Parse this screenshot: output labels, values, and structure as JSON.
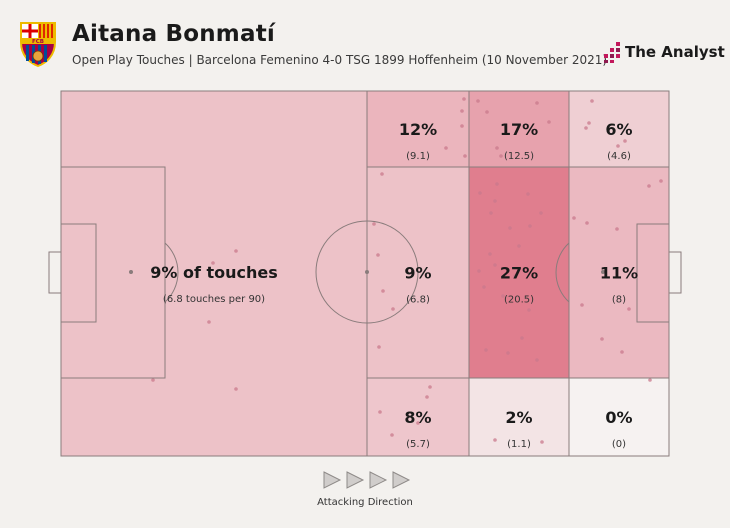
{
  "header": {
    "title": "Aitana Bonmatí",
    "subtitle": "Open Play Touches | Barcelona Femenino 4-0 TSG 1899 Hoffenheim (10 November 2021)",
    "brand": "The Analyst",
    "crest_text": "FCB"
  },
  "footer": {
    "direction_label": "Attacking Direction"
  },
  "colors": {
    "background": "#f3f1ee",
    "line": "#8a7c7c",
    "dot": "#c97a8c",
    "brand_accent": "#c2185b",
    "heat_low": "#f6f2f1",
    "heat_high": "#e07e8e"
  },
  "chart_data": {
    "type": "heatmap",
    "title": "Aitana Bonmatí",
    "subtitle": "Open Play Touches | Barcelona Femenino 4-0 TSG 1899 Hoffenheim (10 November 2021)",
    "metric": "share of open play touches (touches per 90 in brackets)",
    "zones": [
      {
        "id": "own-half",
        "label": "9% of touches",
        "sub": "(6.8 touches per 90)",
        "pct": 9,
        "per90": 6.8
      },
      {
        "id": "mid-top",
        "label": "12%",
        "sub": "(9.1)",
        "pct": 12,
        "per90": 9.1
      },
      {
        "id": "mid-center",
        "label": "9%",
        "sub": "(6.8)",
        "pct": 9,
        "per90": 6.8
      },
      {
        "id": "mid-bottom",
        "label": "8%",
        "sub": "(5.7)",
        "pct": 8,
        "per90": 5.7
      },
      {
        "id": "att-top",
        "label": "17%",
        "sub": "(12.5)",
        "pct": 17,
        "per90": 12.5
      },
      {
        "id": "att-center",
        "label": "27%",
        "sub": "(20.5)",
        "pct": 27,
        "per90": 20.5
      },
      {
        "id": "att-bottom",
        "label": "2%",
        "sub": "(1.1)",
        "pct": 2,
        "per90": 1.1
      },
      {
        "id": "box-top",
        "label": "6%",
        "sub": "(4.6)",
        "pct": 6,
        "per90": 4.6
      },
      {
        "id": "box-center",
        "label": "11%",
        "sub": "(8)",
        "pct": 11,
        "per90": 8
      },
      {
        "id": "box-bottom",
        "label": "0%",
        "sub": "(0)",
        "pct": 0,
        "per90": 0
      }
    ]
  }
}
